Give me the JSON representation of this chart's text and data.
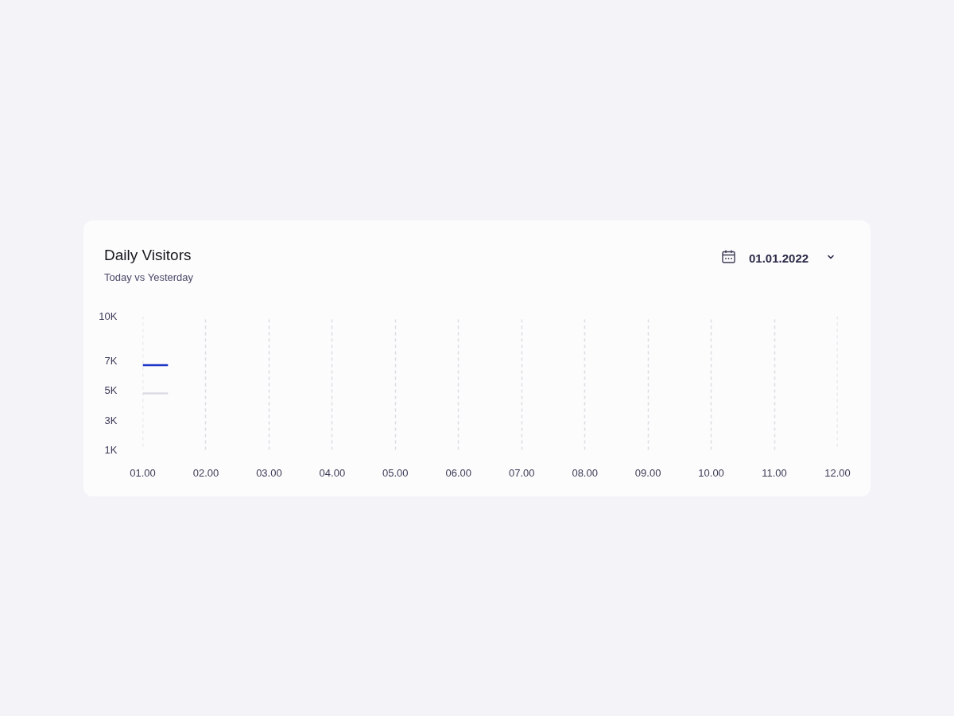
{
  "chart_data": {
    "type": "line",
    "title": "Daily Visitors",
    "subtitle": "Today vs Yesterday",
    "annotations": [
      "01.01.2022"
    ],
    "x": [
      1,
      1.4
    ],
    "series": [
      {
        "color": "#1c34c6",
        "values": [
          6700,
          6700
        ]
      },
      {
        "color": "#dcdce4",
        "values": [
          4800,
          4800
        ]
      }
    ],
    "xlim": [
      1,
      12
    ],
    "xticks": [
      {
        "value": 1,
        "label": "01.00"
      },
      {
        "value": 2,
        "label": "02.00"
      },
      {
        "value": 3,
        "label": "03.00"
      },
      {
        "value": 4,
        "label": "04.00"
      },
      {
        "value": 5,
        "label": "05.00"
      },
      {
        "value": 6,
        "label": "06.00"
      },
      {
        "value": 7,
        "label": "07.00"
      },
      {
        "value": 8,
        "label": "08.00"
      },
      {
        "value": 9,
        "label": "09.00"
      },
      {
        "value": 10,
        "label": "10.00"
      },
      {
        "value": 11,
        "label": "11.00"
      },
      {
        "value": 12,
        "label": "12.00"
      }
    ],
    "ylim": [
      1000,
      10000
    ],
    "yticks": [
      {
        "value": 1000,
        "label": "1K"
      },
      {
        "value": 3000,
        "label": "3K"
      },
      {
        "value": 5000,
        "label": "5K"
      },
      {
        "value": 7000,
        "label": "7K"
      },
      {
        "value": 10000,
        "label": "10K"
      }
    ],
    "grid": "x"
  }
}
